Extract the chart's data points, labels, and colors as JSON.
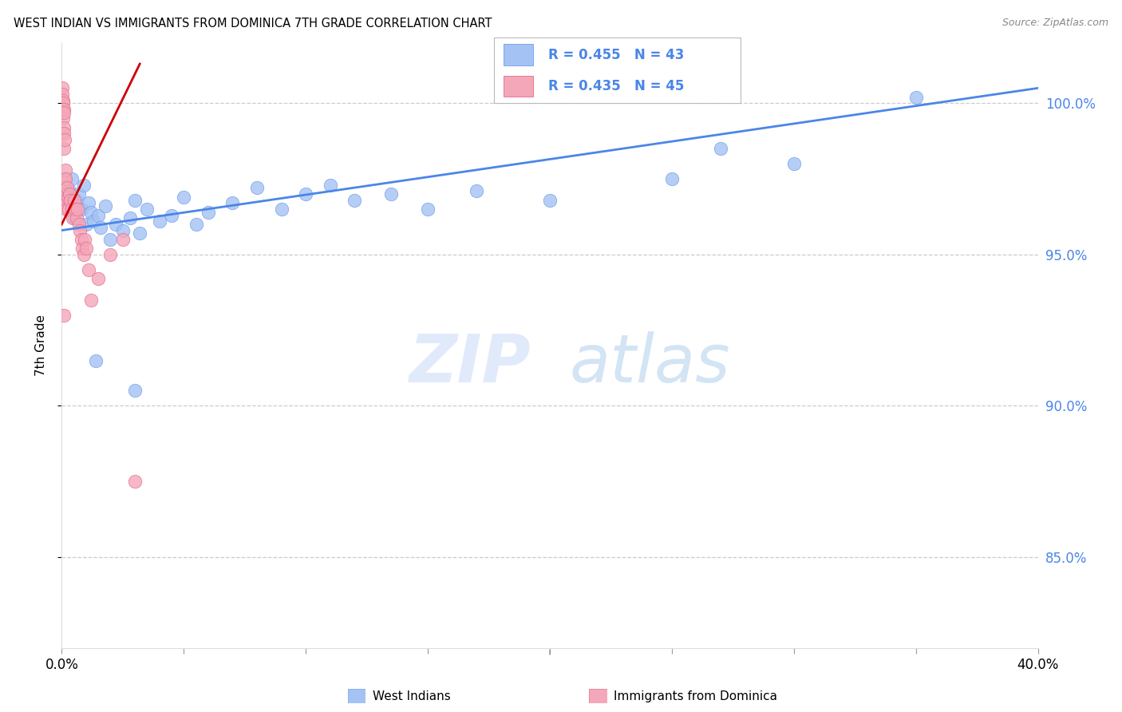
{
  "title": "WEST INDIAN VS IMMIGRANTS FROM DOMINICA 7TH GRADE CORRELATION CHART",
  "source": "Source: ZipAtlas.com",
  "ylabel": "7th Grade",
  "xlim": [
    0.0,
    40.0
  ],
  "ylim": [
    82.0,
    102.0
  ],
  "yticks": [
    85.0,
    90.0,
    95.0,
    100.0
  ],
  "ytick_labels": [
    "85.0%",
    "90.0%",
    "95.0%",
    "100.0%"
  ],
  "xticks": [
    0.0,
    5.0,
    10.0,
    15.0,
    20.0,
    25.0,
    30.0,
    35.0,
    40.0
  ],
  "blue_color": "#a4c2f4",
  "pink_color": "#f4a7b9",
  "blue_edge_color": "#6d9eeb",
  "pink_edge_color": "#e06c8a",
  "blue_line_color": "#4a86e8",
  "pink_line_color": "#cc0000",
  "legend_text_color": "#4a86e8",
  "blue_scatter_x": [
    0.2,
    0.3,
    0.4,
    0.5,
    0.6,
    0.7,
    0.8,
    0.9,
    1.0,
    1.1,
    1.2,
    1.3,
    1.5,
    1.6,
    1.8,
    2.0,
    2.2,
    2.5,
    2.8,
    3.0,
    3.2,
    3.5,
    4.0,
    4.5,
    5.0,
    5.5,
    6.0,
    7.0,
    8.0,
    9.0,
    10.0,
    11.0,
    12.0,
    13.5,
    15.0,
    17.0,
    20.0,
    25.0,
    30.0,
    35.0,
    1.4,
    3.0,
    27.0
  ],
  "blue_scatter_y": [
    96.8,
    97.1,
    97.5,
    96.2,
    96.8,
    97.0,
    96.5,
    97.3,
    96.0,
    96.7,
    96.4,
    96.1,
    96.3,
    95.9,
    96.6,
    95.5,
    96.0,
    95.8,
    96.2,
    96.8,
    95.7,
    96.5,
    96.1,
    96.3,
    96.9,
    96.0,
    96.4,
    96.7,
    97.2,
    96.5,
    97.0,
    97.3,
    96.8,
    97.0,
    96.5,
    97.1,
    96.8,
    97.5,
    98.0,
    100.2,
    91.5,
    90.5,
    98.5
  ],
  "pink_scatter_x": [
    0.02,
    0.03,
    0.04,
    0.05,
    0.06,
    0.07,
    0.08,
    0.08,
    0.09,
    0.1,
    0.1,
    0.11,
    0.12,
    0.13,
    0.14,
    0.15,
    0.16,
    0.17,
    0.18,
    0.2,
    0.22,
    0.25,
    0.28,
    0.3,
    0.35,
    0.4,
    0.45,
    0.5,
    0.55,
    0.6,
    0.65,
    0.7,
    0.75,
    0.8,
    0.85,
    0.9,
    0.95,
    1.0,
    1.1,
    1.2,
    1.5,
    2.0,
    2.5,
    0.1,
    3.0
  ],
  "pink_scatter_y": [
    100.5,
    100.3,
    100.1,
    100.0,
    99.8,
    99.5,
    99.8,
    99.2,
    99.7,
    99.0,
    98.5,
    98.8,
    97.5,
    97.2,
    97.0,
    97.8,
    97.5,
    96.8,
    97.0,
    96.5,
    97.2,
    96.9,
    96.5,
    97.0,
    96.8,
    96.5,
    96.2,
    96.8,
    96.5,
    96.2,
    96.5,
    96.0,
    95.8,
    95.5,
    95.2,
    95.0,
    95.5,
    95.2,
    94.5,
    93.5,
    94.2,
    95.0,
    95.5,
    93.0,
    87.5
  ],
  "blue_trend_x": [
    0.0,
    40.0
  ],
  "blue_trend_y": [
    95.8,
    100.5
  ],
  "pink_trend_x": [
    0.0,
    3.2
  ],
  "pink_trend_y": [
    96.0,
    101.3
  ],
  "watermark_zip": "ZIP",
  "watermark_atlas": "atlas"
}
